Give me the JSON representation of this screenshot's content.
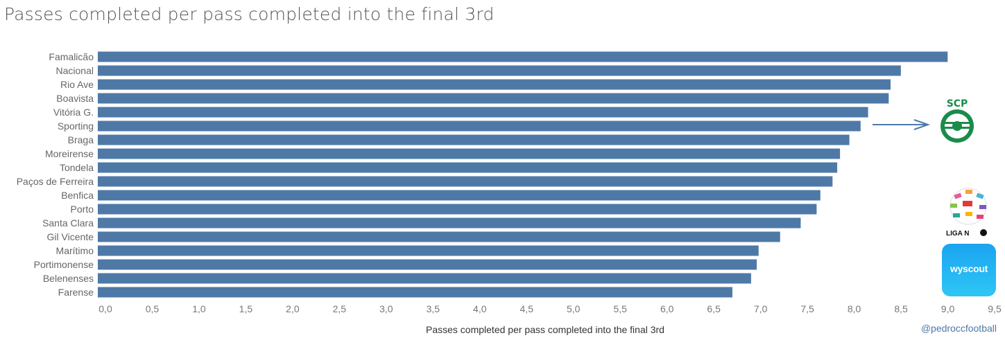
{
  "title": "Passes completed per pass completed into the final 3rd",
  "credit": "@pedroccfootball",
  "logos": {
    "club": "scp-sporting-logo",
    "league": "liga-nos-logo",
    "league_text": "LIGA N",
    "provider_text": "wyscout"
  },
  "colors": {
    "bar": "#4e79a7",
    "text": "#666666",
    "arrow": "#4e79a7"
  },
  "chart_data": {
    "type": "bar",
    "orientation": "horizontal",
    "title": "Passes completed per pass completed into the final 3rd",
    "xlabel": "Passes completed per pass completed into the final 3rd",
    "ylabel": "",
    "xlim": [
      0,
      9.5
    ],
    "grid": false,
    "ticks": [
      "0,0",
      "0,5",
      "1,0",
      "1,5",
      "2,0",
      "2,5",
      "3,0",
      "3,5",
      "4,0",
      "4,5",
      "5,0",
      "5,5",
      "6,0",
      "6,5",
      "7,0",
      "7,5",
      "8,0",
      "8,5",
      "9,0",
      "9,5"
    ],
    "tick_values": [
      0,
      0.5,
      1,
      1.5,
      2,
      2.5,
      3,
      3.5,
      4,
      4.5,
      5,
      5.5,
      6,
      6.5,
      7,
      7.5,
      8,
      8.5,
      9,
      9.5
    ],
    "categories": [
      "Famalicão",
      "Nacional",
      "Rio Ave",
      "Boavista",
      "Vitória G.",
      "Sporting",
      "Braga",
      "Moreirense",
      "Tondela",
      "Paços de Ferreira",
      "Benfica",
      "Porto",
      "Santa Clara",
      "Gil Vicente",
      "Marítimo",
      "Portimonense",
      "Belenenses",
      "Farense"
    ],
    "values": [
      9.08,
      8.58,
      8.47,
      8.45,
      8.23,
      8.15,
      8.03,
      7.93,
      7.9,
      7.85,
      7.72,
      7.68,
      7.51,
      7.29,
      7.06,
      7.04,
      6.98,
      6.78
    ],
    "highlight": "Sporting"
  }
}
